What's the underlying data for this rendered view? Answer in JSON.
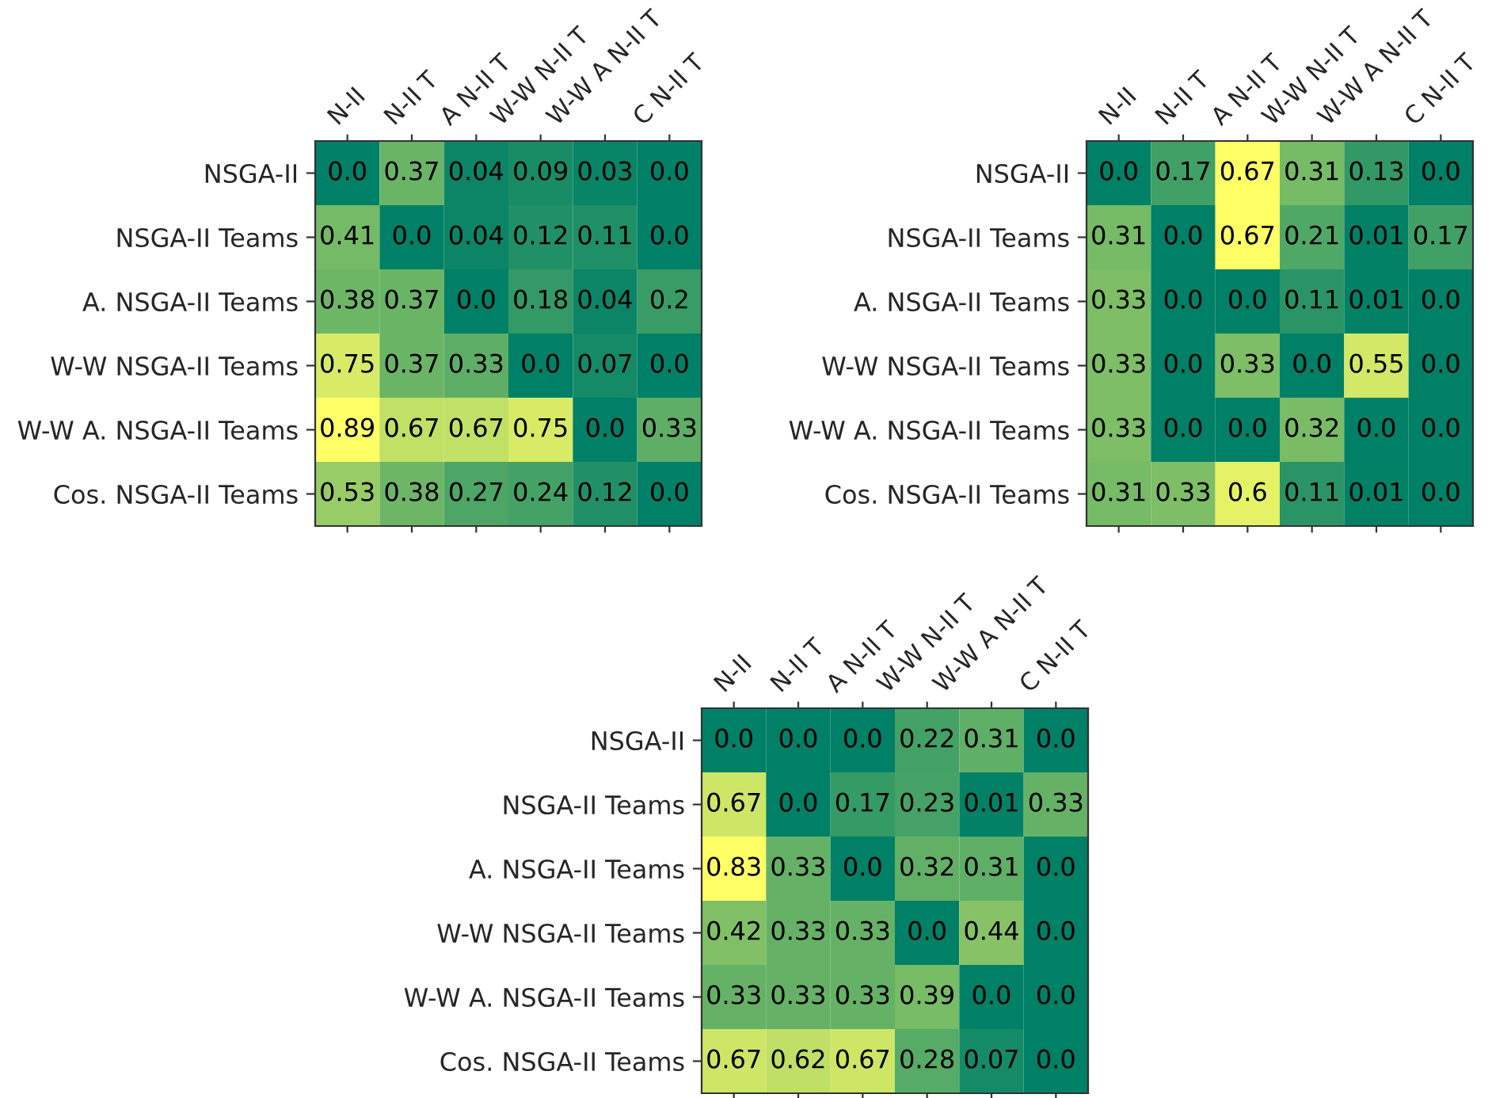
{
  "chart_data": [
    {
      "type": "heatmap",
      "categories": [
        "N-II",
        "N-II T",
        "A N-II T",
        "W-W N-II T",
        "W-W A N-II T",
        "C N-II T"
      ],
      "y_categories": [
        "NSGA-II",
        "NSGA-II Teams",
        "A. NSGA-II Teams",
        "W-W NSGA-II Teams",
        "W-W A. NSGA-II Teams",
        "Cos. NSGA-II Teams"
      ],
      "cells": [
        [
          0.0,
          0.37,
          0.04,
          0.09,
          0.03,
          0.0
        ],
        [
          0.41,
          0.0,
          0.04,
          0.12,
          0.11,
          0.0
        ],
        [
          0.38,
          0.37,
          0.0,
          0.18,
          0.04,
          0.2
        ],
        [
          0.75,
          0.37,
          0.33,
          0.0,
          0.07,
          0.0
        ],
        [
          0.89,
          0.67,
          0.67,
          0.75,
          0.0,
          0.33
        ],
        [
          0.53,
          0.38,
          0.27,
          0.24,
          0.12,
          0.0
        ]
      ],
      "cell_labels": [
        [
          "0.0",
          "0.37",
          "0.04",
          "0.09",
          "0.03",
          "0.0"
        ],
        [
          "0.41",
          "0.0",
          "0.04",
          "0.12",
          "0.11",
          "0.0"
        ],
        [
          "0.38",
          "0.37",
          "0.0",
          "0.18",
          "0.04",
          "0.2"
        ],
        [
          "0.75",
          "0.37",
          "0.33",
          "0.0",
          "0.07",
          "0.0"
        ],
        [
          "0.89",
          "0.67",
          "0.67",
          "0.75",
          "0.0",
          "0.33"
        ],
        [
          "0.53",
          "0.38",
          "0.27",
          "0.24",
          "0.12",
          "0.0"
        ]
      ]
    },
    {
      "type": "heatmap",
      "categories": [
        "N-II",
        "N-II T",
        "A N-II T",
        "W-W N-II T",
        "W-W A N-II T",
        "C N-II T"
      ],
      "y_categories": [
        "NSGA-II",
        "NSGA-II Teams",
        "A. NSGA-II Teams",
        "W-W NSGA-II Teams",
        "W-W A. NSGA-II Teams",
        "Cos. NSGA-II Teams"
      ],
      "cells": [
        [
          0.0,
          0.17,
          0.67,
          0.31,
          0.13,
          0.0
        ],
        [
          0.31,
          0.0,
          0.67,
          0.21,
          0.01,
          0.17
        ],
        [
          0.33,
          0.0,
          0.0,
          0.11,
          0.01,
          0.0
        ],
        [
          0.33,
          0.0,
          0.33,
          0.0,
          0.55,
          0.0
        ],
        [
          0.33,
          0.0,
          0.0,
          0.32,
          0.0,
          0.0
        ],
        [
          0.31,
          0.33,
          0.6,
          0.11,
          0.01,
          0.0
        ]
      ],
      "cell_labels": [
        [
          "0.0",
          "0.17",
          "0.67",
          "0.31",
          "0.13",
          "0.0"
        ],
        [
          "0.31",
          "0.0",
          "0.67",
          "0.21",
          "0.01",
          "0.17"
        ],
        [
          "0.33",
          "0.0",
          "0.0",
          "0.11",
          "0.01",
          "0.0"
        ],
        [
          "0.33",
          "0.0",
          "0.33",
          "0.0",
          "0.55",
          "0.0"
        ],
        [
          "0.33",
          "0.0",
          "0.0",
          "0.32",
          "0.0",
          "0.0"
        ],
        [
          "0.31",
          "0.33",
          "0.6",
          "0.11",
          "0.01",
          "0.0"
        ]
      ]
    },
    {
      "type": "heatmap",
      "categories": [
        "N-II",
        "N-II T",
        "A N-II T",
        "W-W N-II T",
        "W-W A N-II T",
        "C N-II T"
      ],
      "y_categories": [
        "NSGA-II",
        "NSGA-II Teams",
        "A. NSGA-II Teams",
        "W-W NSGA-II Teams",
        "W-W A. NSGA-II Teams",
        "Cos. NSGA-II Teams"
      ],
      "cells": [
        [
          0.0,
          0.0,
          0.0,
          0.22,
          0.31,
          0.0
        ],
        [
          0.67,
          0.0,
          0.17,
          0.23,
          0.01,
          0.33
        ],
        [
          0.83,
          0.33,
          0.0,
          0.32,
          0.31,
          0.0
        ],
        [
          0.42,
          0.33,
          0.33,
          0.0,
          0.44,
          0.0
        ],
        [
          0.33,
          0.33,
          0.33,
          0.39,
          0.0,
          0.0
        ],
        [
          0.67,
          0.62,
          0.67,
          0.28,
          0.07,
          0.0
        ]
      ],
      "cell_labels": [
        [
          "0.0",
          "0.0",
          "0.0",
          "0.22",
          "0.31",
          "0.0"
        ],
        [
          "0.67",
          "0.0",
          "0.17",
          "0.23",
          "0.01",
          "0.33"
        ],
        [
          "0.83",
          "0.33",
          "0.0",
          "0.32",
          "0.31",
          "0.0"
        ],
        [
          "0.42",
          "0.33",
          "0.33",
          "0.0",
          "0.44",
          "0.0"
        ],
        [
          "0.33",
          "0.33",
          "0.33",
          "0.39",
          "0.0",
          "0.0"
        ],
        [
          "0.67",
          "0.62",
          "0.67",
          "0.28",
          "0.07",
          "0.0"
        ]
      ]
    }
  ]
}
